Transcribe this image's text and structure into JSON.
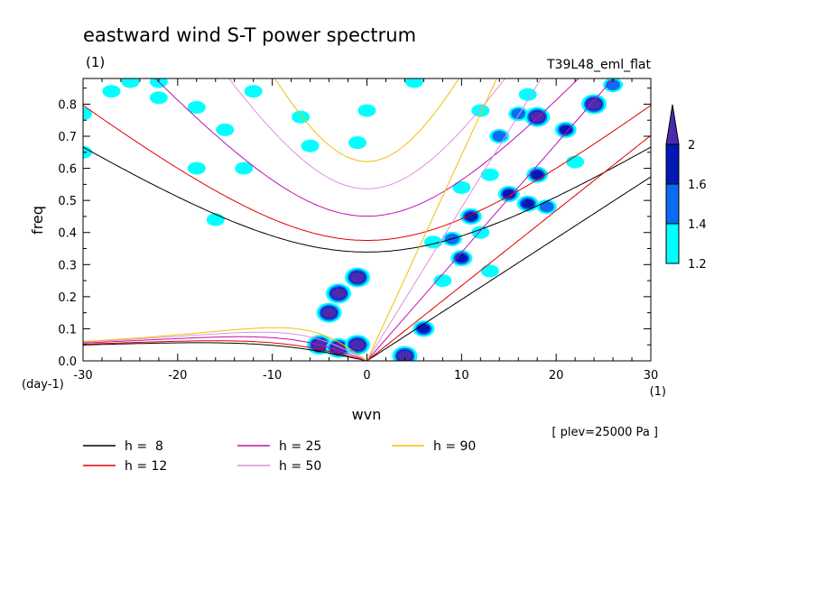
{
  "chart_data": {
    "type": "heatmap",
    "title": "eastward wind S-T power spectrum",
    "subtitle_left": "(1)",
    "subtitle_right": "T39L48_eml_flat",
    "xlabel": "wvn",
    "ylabel": "freq",
    "x_unit": "(1)",
    "y_unit": "(day-1)",
    "xlim": [
      -30,
      30
    ],
    "ylim": [
      0,
      0.88
    ],
    "x_ticks": [
      -30,
      -20,
      -10,
      0,
      10,
      20,
      30
    ],
    "x_tick_labels": [
      "-30",
      "-20",
      "-10",
      "0",
      "10",
      "20",
      "30"
    ],
    "y_ticks": [
      0,
      0.1,
      0.2,
      0.3,
      0.4,
      0.5,
      0.6,
      0.7,
      0.8
    ],
    "y_tick_labels": [
      "0.0",
      "0.1",
      "0.2",
      "0.3",
      "0.4",
      "0.5",
      "0.6",
      "0.7",
      "0.8"
    ],
    "annotation": "[ plev=25000 Pa ]",
    "colorbar": {
      "levels": [
        1.2,
        1.4,
        1.6,
        2
      ],
      "labels": [
        "1.2",
        "1.4",
        "1.6",
        "2"
      ],
      "colors": [
        "#00ffff",
        "#0a6cf0",
        "#0018b4",
        "#4a2bb0"
      ]
    },
    "dispersion_curves": [
      {
        "h": 8,
        "label": "h =  8",
        "color": "#000000"
      },
      {
        "h": 12,
        "label": "h = 12",
        "color": "#e00000"
      },
      {
        "h": 25,
        "label": "h = 25",
        "color": "#c010b0"
      },
      {
        "h": 50,
        "label": "h = 50",
        "color": "#e090e0"
      },
      {
        "h": 90,
        "label": "h = 90",
        "color": "#f0c000"
      }
    ],
    "power_blobs": [
      {
        "wvn": -30,
        "freq": 0.77,
        "level": 1.2
      },
      {
        "wvn": -30,
        "freq": 0.65,
        "level": 1.2
      },
      {
        "wvn": -27,
        "freq": 0.84,
        "level": 1.2
      },
      {
        "wvn": -25,
        "freq": 0.87,
        "level": 1.2
      },
      {
        "wvn": -22,
        "freq": 0.82,
        "level": 1.2
      },
      {
        "wvn": -22,
        "freq": 0.87,
        "level": 1.2
      },
      {
        "wvn": -18,
        "freq": 0.79,
        "level": 1.2
      },
      {
        "wvn": -15,
        "freq": 0.72,
        "level": 1.2
      },
      {
        "wvn": -12,
        "freq": 0.84,
        "level": 1.2
      },
      {
        "wvn": -18,
        "freq": 0.6,
        "level": 1.2
      },
      {
        "wvn": -13,
        "freq": 0.6,
        "level": 1.2
      },
      {
        "wvn": -6,
        "freq": 0.67,
        "level": 1.2
      },
      {
        "wvn": -7,
        "freq": 0.76,
        "level": 1.2
      },
      {
        "wvn": 0,
        "freq": 0.78,
        "level": 1.2
      },
      {
        "wvn": 5,
        "freq": 0.87,
        "level": 1.2
      },
      {
        "wvn": -16,
        "freq": 0.44,
        "level": 1.2
      },
      {
        "wvn": -1,
        "freq": 0.68,
        "level": 1.2
      },
      {
        "wvn": -1,
        "freq": 0.26,
        "level": 2
      },
      {
        "wvn": -3,
        "freq": 0.21,
        "level": 2
      },
      {
        "wvn": -4,
        "freq": 0.15,
        "level": 2
      },
      {
        "wvn": -5,
        "freq": 0.05,
        "level": 2
      },
      {
        "wvn": -3,
        "freq": 0.04,
        "level": 2
      },
      {
        "wvn": -1,
        "freq": 0.05,
        "level": 2
      },
      {
        "wvn": 4,
        "freq": 0.015,
        "level": 2
      },
      {
        "wvn": 6,
        "freq": 0.1,
        "level": 1.6
      },
      {
        "wvn": 8,
        "freq": 0.25,
        "level": 1.2
      },
      {
        "wvn": 9,
        "freq": 0.38,
        "level": 1.4
      },
      {
        "wvn": 10,
        "freq": 0.32,
        "level": 1.6
      },
      {
        "wvn": 11,
        "freq": 0.45,
        "level": 1.6
      },
      {
        "wvn": 13,
        "freq": 0.58,
        "level": 1.2
      },
      {
        "wvn": 14,
        "freq": 0.7,
        "level": 1.4
      },
      {
        "wvn": 15,
        "freq": 0.52,
        "level": 1.6
      },
      {
        "wvn": 16,
        "freq": 0.77,
        "level": 1.4
      },
      {
        "wvn": 17,
        "freq": 0.49,
        "level": 1.6
      },
      {
        "wvn": 18,
        "freq": 0.76,
        "level": 2
      },
      {
        "wvn": 18,
        "freq": 0.58,
        "level": 1.6
      },
      {
        "wvn": 19,
        "freq": 0.48,
        "level": 1.4
      },
      {
        "wvn": 21,
        "freq": 0.72,
        "level": 1.6
      },
      {
        "wvn": 24,
        "freq": 0.8,
        "level": 2
      },
      {
        "wvn": 26,
        "freq": 0.86,
        "level": 1.4
      },
      {
        "wvn": 22,
        "freq": 0.62,
        "level": 1.2
      },
      {
        "wvn": 12,
        "freq": 0.78,
        "level": 1.2
      },
      {
        "wvn": 17,
        "freq": 0.83,
        "level": 1.2
      },
      {
        "wvn": 10,
        "freq": 0.54,
        "level": 1.2
      },
      {
        "wvn": 12,
        "freq": 0.4,
        "level": 1.2
      },
      {
        "wvn": 7,
        "freq": 0.37,
        "level": 1.2
      },
      {
        "wvn": 13,
        "freq": 0.28,
        "level": 1.2
      }
    ]
  }
}
